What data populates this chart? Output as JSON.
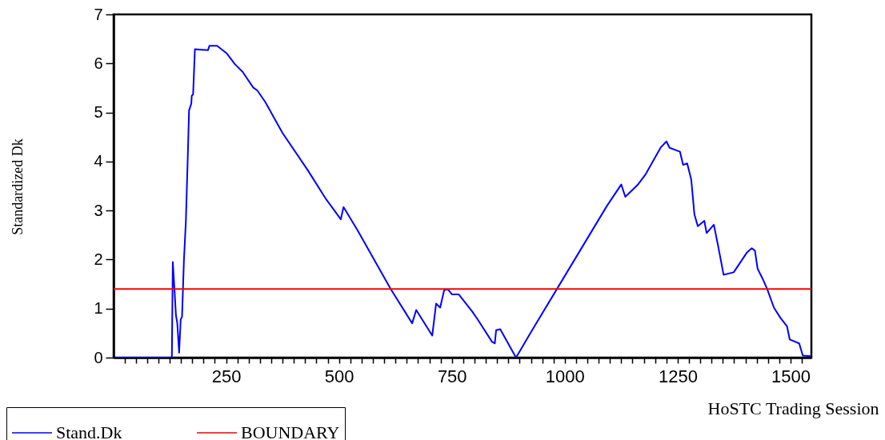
{
  "chart_data": {
    "type": "line",
    "xlabel": "HoSTC Trading Session",
    "ylabel": "Standardized Dk",
    "xlim": [
      1,
      1546
    ],
    "ylim": [
      0,
      7
    ],
    "xticks": [
      {
        "value": 25,
        "label": null
      },
      {
        "value": 50,
        "label": null
      },
      {
        "value": 75,
        "label": null
      },
      {
        "value": 100,
        "label": null
      },
      {
        "value": 125,
        "label": null
      },
      {
        "value": 150,
        "label": null
      },
      {
        "value": 175,
        "label": null
      },
      {
        "value": 200,
        "label": null
      },
      {
        "value": 225,
        "label": null
      },
      250,
      {
        "value": 275,
        "label": null
      },
      {
        "value": 300,
        "label": null
      },
      {
        "value": 325,
        "label": null
      },
      {
        "value": 350,
        "label": null
      },
      {
        "value": 375,
        "label": null
      },
      {
        "value": 400,
        "label": null
      },
      {
        "value": 425,
        "label": null
      },
      {
        "value": 450,
        "label": null
      },
      {
        "value": 475,
        "label": null
      },
      500,
      {
        "value": 525,
        "label": null
      },
      {
        "value": 550,
        "label": null
      },
      {
        "value": 575,
        "label": null
      },
      {
        "value": 600,
        "label": null
      },
      {
        "value": 625,
        "label": null
      },
      {
        "value": 650,
        "label": null
      },
      {
        "value": 675,
        "label": null
      },
      {
        "value": 700,
        "label": null
      },
      {
        "value": 725,
        "label": null
      },
      750,
      {
        "value": 775,
        "label": null
      },
      {
        "value": 800,
        "label": null
      },
      {
        "value": 825,
        "label": null
      },
      {
        "value": 850,
        "label": null
      },
      {
        "value": 875,
        "label": null
      },
      {
        "value": 900,
        "label": null
      },
      {
        "value": 925,
        "label": null
      },
      {
        "value": 950,
        "label": null
      },
      {
        "value": 975,
        "label": null
      },
      1000,
      {
        "value": 1025,
        "label": null
      },
      {
        "value": 1050,
        "label": null
      },
      {
        "value": 1075,
        "label": null
      },
      {
        "value": 1100,
        "label": null
      },
      {
        "value": 1125,
        "label": null
      },
      {
        "value": 1150,
        "label": null
      },
      {
        "value": 1175,
        "label": null
      },
      {
        "value": 1200,
        "label": null
      },
      {
        "value": 1225,
        "label": null
      },
      1250,
      {
        "value": 1275,
        "label": null
      },
      {
        "value": 1300,
        "label": null
      },
      {
        "value": 1325,
        "label": null
      },
      {
        "value": 1350,
        "label": null
      },
      {
        "value": 1375,
        "label": null
      },
      {
        "value": 1400,
        "label": null
      },
      {
        "value": 1425,
        "label": null
      },
      {
        "value": 1450,
        "label": null
      },
      {
        "value": 1475,
        "label": null
      },
      1500,
      {
        "value": 1525,
        "label": null
      }
    ],
    "yticks": [
      0,
      1,
      2,
      3,
      4,
      5,
      6,
      7
    ],
    "grid": false,
    "legend": "bottom left",
    "series": [
      {
        "name": "Stand.Dk",
        "color": "#0000ff",
        "x": [
          2,
          130,
          132,
          136,
          139,
          142,
          146,
          149.5,
          152.5,
          156.6,
          161,
          165,
          168,
          173,
          174,
          177,
          181,
          210,
          213,
          230,
          251,
          269,
          286.5,
          310,
          319,
          337,
          375,
          431,
          470,
          504,
          510,
          541,
          614.5,
          662,
          671,
          706.5,
          715,
          724,
          733,
          741.5,
          750,
          765,
          795,
          807,
          839,
          845,
          848,
          857,
          892,
          925,
          999,
          1093,
          1125,
          1134,
          1161,
          1179,
          1212,
          1225,
          1232,
          1255,
          1262,
          1271,
          1280,
          1287,
          1294.5,
          1309,
          1314,
          1330,
          1339,
          1347.5,
          1351.5,
          1374,
          1403,
          1414,
          1421,
          1427,
          1439,
          1448,
          1463,
          1477.5,
          1492,
          1498,
          1519,
          1527,
          1545
        ],
        "values": [
          0,
          0,
          1.95,
          1.35,
          0.86,
          0.7,
          0.1,
          0.78,
          0.83,
          1.97,
          2.79,
          4.04,
          5.04,
          5.18,
          5.34,
          5.37,
          6.29,
          6.27,
          6.36,
          6.36,
          6.21,
          5.99,
          5.83,
          5.51,
          5.45,
          5.21,
          4.58,
          3.82,
          3.25,
          2.82,
          3.07,
          2.6,
          1.4,
          0.7,
          0.97,
          0.45,
          1.1,
          1.02,
          1.38,
          1.39,
          1.29,
          1.29,
          0.94,
          0.78,
          0.32,
          0.29,
          0.56,
          0.58,
          0,
          0.52,
          1.65,
          3.09,
          3.53,
          3.28,
          3.52,
          3.74,
          4.28,
          4.41,
          4.28,
          4.2,
          3.93,
          3.96,
          3.63,
          2.92,
          2.68,
          2.79,
          2.54,
          2.71,
          2.3,
          1.89,
          1.69,
          1.74,
          2.14,
          2.23,
          2.18,
          1.81,
          1.59,
          1.4,
          1.02,
          0.81,
          0.64,
          0.37,
          0.29,
          0.04,
          0.03
        ]
      },
      {
        "name": "BOUNDARY",
        "color": "#ff0000",
        "x": [
          1,
          1546
        ],
        "values": [
          1.4,
          1.4
        ]
      }
    ]
  }
}
